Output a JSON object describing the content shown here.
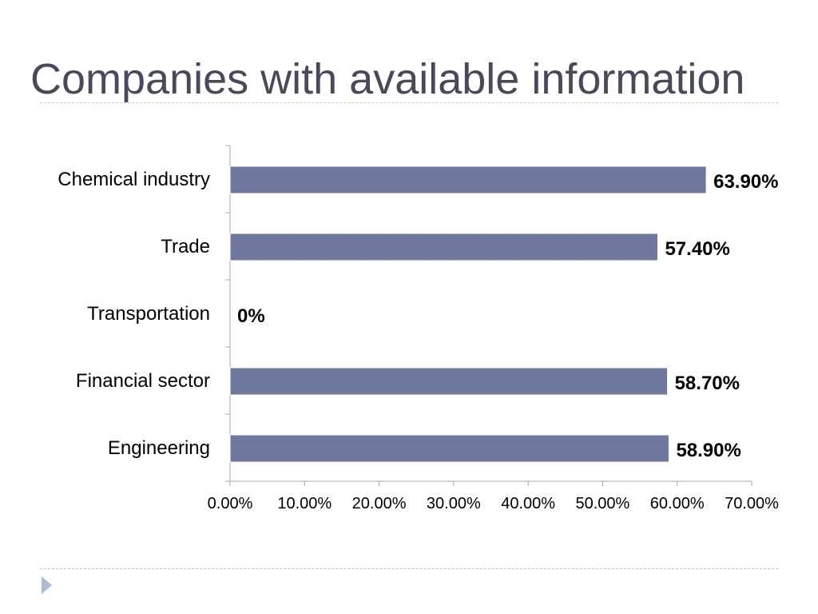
{
  "slide": {
    "title": "Companies with available information"
  },
  "chart_data": {
    "type": "bar",
    "orientation": "horizontal",
    "categories": [
      "Chemical industry",
      "Trade",
      "Transportation",
      "Financial sector",
      "Engineering"
    ],
    "values": [
      63.9,
      57.4,
      0,
      58.7,
      58.9
    ],
    "value_labels": [
      "63.90%",
      "57.40%",
      "0%",
      "58.70%",
      "58.90%"
    ],
    "xlim": [
      0,
      70
    ],
    "x_ticks": [
      0,
      10,
      20,
      30,
      40,
      50,
      60,
      70
    ],
    "x_tick_labels": [
      "0.00%",
      "10.00%",
      "20.00%",
      "30.00%",
      "40.00%",
      "50.00%",
      "60.00%",
      "70.00%"
    ],
    "grid": false,
    "legend": "none",
    "bar_color": "#6e789f",
    "axis_color": "#a8a8a8"
  },
  "colors": {
    "title": "#484a5c",
    "footer_arrow": "#a9bfd6"
  }
}
